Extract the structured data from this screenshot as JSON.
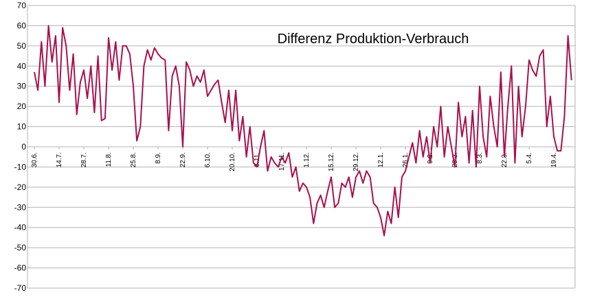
{
  "chart_data": {
    "type": "line",
    "title": "Differenz Produktion-Verbrauch",
    "categories": [
      "30.6.",
      null,
      null,
      null,
      null,
      null,
      null,
      "14.7.",
      null,
      null,
      null,
      null,
      null,
      null,
      "28.7.",
      null,
      null,
      null,
      null,
      null,
      null,
      "11.8.",
      null,
      null,
      null,
      null,
      null,
      null,
      "25.8.",
      null,
      null,
      null,
      null,
      null,
      null,
      "8.9.",
      null,
      null,
      null,
      null,
      null,
      null,
      "22.9.",
      null,
      null,
      null,
      null,
      null,
      null,
      "6.10.",
      null,
      null,
      null,
      null,
      null,
      null,
      "20.10.",
      null,
      null,
      null,
      null,
      null,
      null,
      "3.11.",
      null,
      null,
      null,
      null,
      null,
      null,
      "17.11.",
      null,
      null,
      null,
      null,
      null,
      null,
      "1.12.",
      null,
      null,
      null,
      null,
      null,
      null,
      "15.12.",
      null,
      null,
      null,
      null,
      null,
      null,
      "29.12.",
      null,
      null,
      null,
      null,
      null,
      null,
      "12.1.",
      null,
      null,
      null,
      null,
      null,
      null,
      "26.1.",
      null,
      null,
      null,
      null,
      null,
      null,
      "9.2.",
      null,
      null,
      null,
      null,
      null,
      null,
      "23.2.",
      null,
      null,
      null,
      null,
      null,
      null,
      "8.3.",
      null,
      null,
      null,
      null,
      null,
      null,
      "22.3.",
      null,
      null,
      null,
      null,
      null,
      null,
      "5.4.",
      null,
      null,
      null,
      null,
      null,
      null,
      "19.4.",
      null,
      null,
      null,
      null,
      null
    ],
    "values": [
      37,
      28,
      52,
      30,
      60,
      42,
      55,
      22,
      59,
      50,
      28,
      46,
      16,
      32,
      38,
      24,
      40,
      17,
      45,
      13,
      14,
      54,
      38,
      52,
      33,
      50,
      50,
      46,
      30,
      3,
      10,
      40,
      48,
      43,
      49,
      46,
      44,
      43,
      8,
      35,
      40,
      30,
      0,
      42,
      38,
      30,
      35,
      32,
      38,
      25,
      28,
      31,
      33,
      22,
      12,
      28,
      8,
      28,
      3,
      15,
      -5,
      10,
      -8,
      -10,
      0,
      8,
      -12,
      -5,
      -8,
      -10,
      -5,
      -8,
      -3,
      -15,
      -10,
      -22,
      -18,
      -20,
      -25,
      -38,
      -28,
      -24,
      -30,
      -22,
      -15,
      -30,
      -28,
      -18,
      -20,
      -15,
      -25,
      -15,
      -12,
      -18,
      -12,
      -15,
      -28,
      -30,
      -35,
      -44,
      -32,
      -38,
      -20,
      -35,
      -15,
      -12,
      -5,
      2,
      -8,
      8,
      -5,
      5,
      -8,
      10,
      0,
      20,
      -5,
      10,
      0,
      -10,
      22,
      5,
      15,
      -8,
      18,
      -10,
      30,
      5,
      -5,
      25,
      10,
      0,
      37,
      -5,
      20,
      40,
      -8,
      30,
      5,
      20,
      43,
      38,
      35,
      45,
      48,
      10,
      25,
      5,
      -2,
      -2,
      15,
      55,
      33
    ],
    "color": "#a8104e",
    "ylim": [
      -70,
      70
    ],
    "yticks": [
      -70,
      -60,
      -50,
      -40,
      -30,
      -20,
      -10,
      0,
      10,
      20,
      30,
      40,
      50,
      60,
      70
    ],
    "grid": true
  }
}
